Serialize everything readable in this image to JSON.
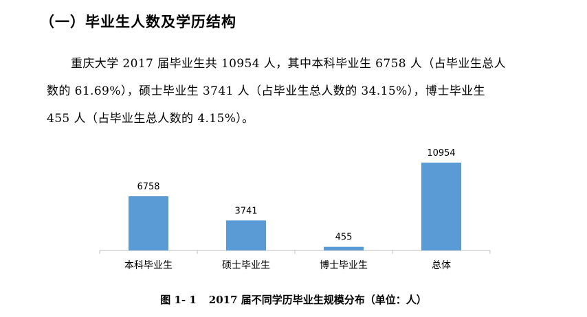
{
  "section": {
    "heading": "（一）毕业生人数及学历结构"
  },
  "paragraph": {
    "line1": "重庆大学 2017 届毕业生共 10954 人，其中本科毕业生 6758 人（占毕业生总人",
    "line2": "数的 61.69%），硕士毕业生 3741 人（占毕业生总人数的 34.15%），博士毕业生",
    "line3": "455 人（占毕业生总人数的 4.15%）。"
  },
  "chart_data": {
    "type": "bar",
    "categories": [
      "本科毕业生",
      "硕士毕业生",
      "博士毕业生",
      "总体"
    ],
    "values": [
      6758,
      3741,
      455,
      10954
    ],
    "data_labels": [
      "6758",
      "3741",
      "455",
      "10954"
    ],
    "bar_color": "#5b9bd5",
    "grid": false,
    "legend": "none"
  },
  "figure": {
    "number": "图 1- 1",
    "caption": "2017 届不同学历毕业生规模分布（单位：人）"
  }
}
